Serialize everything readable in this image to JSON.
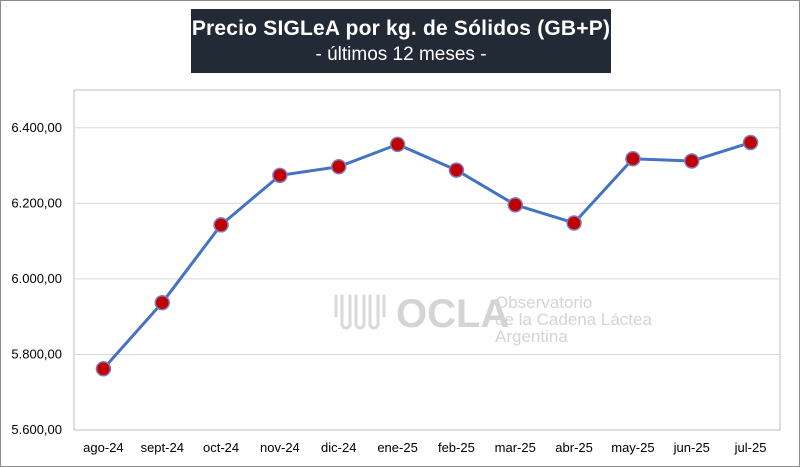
{
  "title": {
    "main": "Precio SIGLeA por kg. de Sólidos (GB+P)",
    "sub": "- últimos 12 meses -"
  },
  "watermark": {
    "brand": "OCLA",
    "line1": "Observatorio",
    "line2": "de la Cadena Láctea",
    "line3": "Argentina"
  },
  "colors": {
    "line": "#4472c4",
    "marker_fill": "#c00000",
    "marker_stroke": "#7f7fbf",
    "title_bg": "#222a35",
    "grid": "#d9d9d9"
  },
  "chart_data": {
    "type": "line",
    "title": "Precio SIGLeA por kg. de Sólidos (GB+P)",
    "subtitle": "- últimos 12 meses -",
    "xlabel": "",
    "ylabel": "",
    "categories": [
      "ago-24",
      "sept-24",
      "oct-24",
      "nov-24",
      "dic-24",
      "ene-25",
      "feb-25",
      "mar-25",
      "abr-25",
      "may-25",
      "jun-25",
      "jul-25"
    ],
    "series": [
      {
        "values": [
          5762,
          5937,
          6143,
          6274,
          6297,
          6356,
          6288,
          6196,
          6148,
          6318,
          6312,
          6361
        ]
      }
    ],
    "ylim": [
      5600,
      6500
    ],
    "yticks": [
      5600,
      5800,
      6000,
      6200,
      6400
    ],
    "ytick_labels": [
      "5.600,00",
      "5.800,00",
      "6.000,00",
      "6.200,00",
      "6.400,00"
    ],
    "grid": true,
    "legend": "none"
  }
}
